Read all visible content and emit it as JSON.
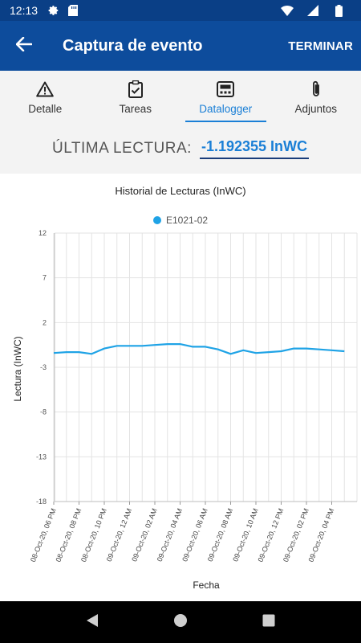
{
  "statusbar": {
    "time": "12:13",
    "icons": [
      "gear-icon",
      "sd-card-icon",
      "wifi-icon",
      "signal-icon",
      "battery-icon"
    ]
  },
  "appbar": {
    "title": "Captura de evento",
    "action_label": "TERMINAR",
    "back_icon": "arrow-left-icon"
  },
  "tabs": [
    {
      "label": "Detalle",
      "icon": "warning-icon",
      "active": false
    },
    {
      "label": "Tareas",
      "icon": "clipboard-check-icon",
      "active": false
    },
    {
      "label": "Datalogger",
      "icon": "datalogger-icon",
      "active": true
    },
    {
      "label": "Adjuntos",
      "icon": "paperclip-icon",
      "active": false
    }
  ],
  "reading": {
    "label": "ÚLTIMA LECTURA:",
    "value": "-1.192355 InWC"
  },
  "colors": {
    "appbar": "#0d4c9c",
    "statusbar": "#0a3f86",
    "accent": "#1a7fd6",
    "series": "#1fa3e6"
  },
  "chart_data": {
    "type": "line",
    "title": "Historial de Lecturas (InWC)",
    "xlabel": "Fecha",
    "ylabel": "Lectura (InWC)",
    "ylim": [
      -18,
      12
    ],
    "yticks": [
      12,
      7,
      2,
      -3,
      -8,
      -13,
      -18
    ],
    "grid": true,
    "legend_position": "top-center",
    "x_tick_labels": [
      "08-Oct-20, 06 PM",
      "08-Oct-20, 08 PM",
      "08-Oct-20, 10 PM",
      "09-Oct-20, 12 AM",
      "09-Oct-20, 02 AM",
      "09-Oct-20, 04 AM",
      "09-Oct-20, 06 AM",
      "09-Oct-20, 08 AM",
      "09-Oct-20, 10 AM",
      "09-Oct-20, 12 PM",
      "09-Oct-20, 02 PM",
      "09-Oct-20, 04 PM"
    ],
    "series": [
      {
        "name": "E1021-02",
        "color": "#1fa3e6",
        "points": [
          {
            "h": 0,
            "v": -1.4
          },
          {
            "h": 1,
            "v": -1.3
          },
          {
            "h": 2,
            "v": -1.3
          },
          {
            "h": 3,
            "v": -1.5
          },
          {
            "h": 4,
            "v": -0.9
          },
          {
            "h": 5,
            "v": -0.6
          },
          {
            "h": 6,
            "v": -0.6
          },
          {
            "h": 7,
            "v": -0.6
          },
          {
            "h": 8,
            "v": -0.5
          },
          {
            "h": 9,
            "v": -0.4
          },
          {
            "h": 10,
            "v": -0.4
          },
          {
            "h": 11,
            "v": -0.7
          },
          {
            "h": 12,
            "v": -0.7
          },
          {
            "h": 13,
            "v": -1.0
          },
          {
            "h": 14,
            "v": -1.5
          },
          {
            "h": 15,
            "v": -1.1
          },
          {
            "h": 16,
            "v": -1.4
          },
          {
            "h": 17,
            "v": -1.3
          },
          {
            "h": 18,
            "v": -1.2
          },
          {
            "h": 19,
            "v": -0.9
          },
          {
            "h": 20,
            "v": -0.9
          },
          {
            "h": 21,
            "v": -1.0
          },
          {
            "h": 22,
            "v": -1.1
          },
          {
            "h": 23,
            "v": -1.2
          }
        ]
      }
    ]
  },
  "navbar": {
    "icons": [
      "back-triangle-icon",
      "home-circle-icon",
      "recents-square-icon"
    ]
  }
}
